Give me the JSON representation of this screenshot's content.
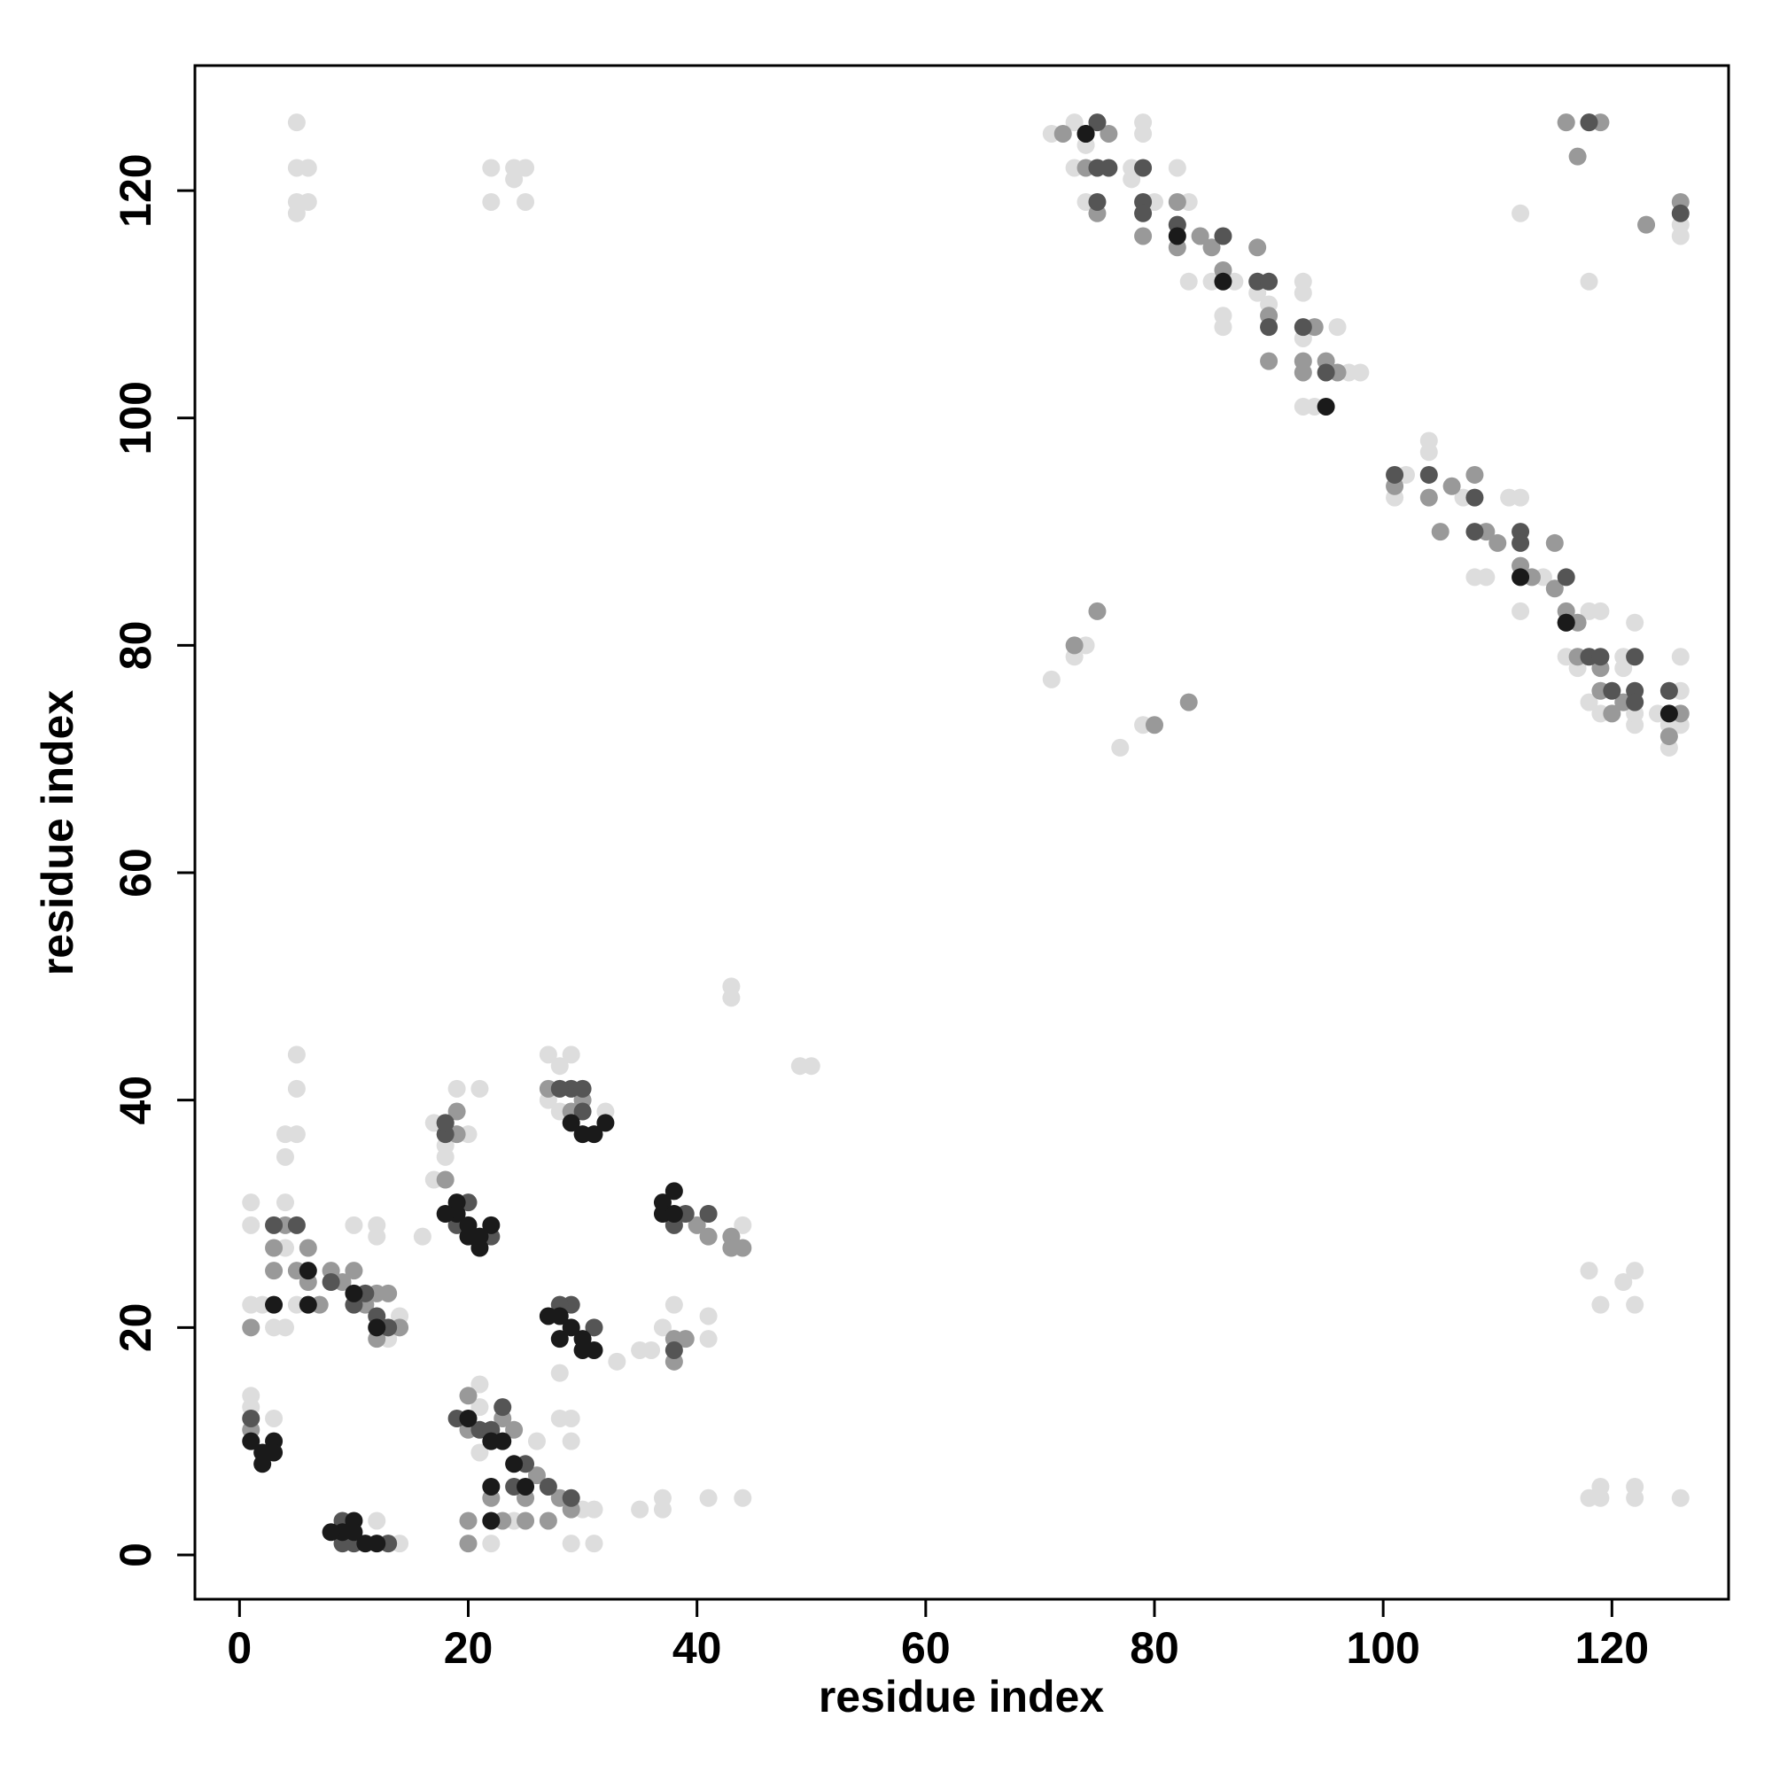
{
  "chart_data": {
    "type": "scatter",
    "xlabel": "residue index",
    "ylabel": "residue index",
    "xlim": [
      -3.9,
      130.2
    ],
    "ylim": [
      -3.9,
      131.0
    ],
    "xticks": [
      0,
      20,
      40,
      60,
      80,
      100,
      120
    ],
    "yticks": [
      0,
      20,
      40,
      60,
      80,
      100,
      120
    ],
    "series": [
      {
        "color": "#dddddd",
        "x": [
          1,
          1,
          1,
          1,
          1,
          2,
          3,
          3,
          4,
          4,
          4,
          4,
          4,
          5,
          5,
          5,
          5,
          5,
          5,
          5,
          5,
          6,
          6,
          12,
          12,
          10,
          14,
          13,
          12,
          14,
          13,
          16,
          17,
          17,
          18,
          18,
          19,
          21,
          20,
          22,
          22,
          24,
          24,
          25,
          25,
          21,
          21,
          22,
          21,
          24,
          26,
          27,
          27,
          28,
          29,
          28,
          28,
          28,
          29,
          29,
          29,
          30,
          31,
          31,
          33,
          32,
          35,
          35,
          36,
          37,
          37,
          37,
          38,
          38,
          41,
          41,
          41,
          44,
          44,
          43,
          43,
          49,
          50,
          71,
          71,
          73,
          74,
          73,
          73,
          74,
          74,
          77,
          79,
          78,
          78,
          79,
          79,
          80,
          82,
          83,
          83,
          84,
          85,
          86,
          86,
          87,
          89,
          90,
          93,
          93,
          93,
          93,
          94,
          96,
          97,
          98,
          101,
          102,
          104,
          104,
          107,
          108,
          109,
          111,
          112,
          112,
          112,
          114,
          116,
          117,
          118,
          118,
          118,
          118,
          118,
          119,
          119,
          119,
          119,
          119,
          121,
          121,
          121,
          122,
          122,
          122,
          122,
          122,
          122,
          122,
          124,
          125,
          125,
          126,
          126,
          126,
          126,
          126,
          126,
          116
        ],
        "y": [
          31,
          29,
          22,
          13,
          14,
          22,
          12,
          20,
          20,
          27,
          31,
          37,
          35,
          44,
          41,
          37,
          22,
          126,
          122,
          119,
          118,
          122,
          119,
          29,
          28,
          29,
          21,
          19,
          3,
          1,
          1,
          28,
          38,
          33,
          36,
          35,
          41,
          41,
          37,
          122,
          119,
          121,
          122,
          122,
          119,
          15,
          13,
          1,
          9,
          3,
          10,
          44,
          40,
          43,
          44,
          39,
          16,
          12,
          12,
          10,
          1,
          4,
          4,
          1,
          17,
          39,
          4,
          18,
          18,
          5,
          4,
          20,
          29,
          22,
          5,
          21,
          19,
          5,
          29,
          50,
          49,
          43,
          43,
          125,
          77,
          79,
          80,
          126,
          122,
          124,
          119,
          71,
          73,
          121,
          122,
          126,
          125,
          119,
          122,
          119,
          112,
          116,
          112,
          108,
          109,
          112,
          111,
          110,
          112,
          111,
          107,
          101,
          101,
          108,
          104,
          104,
          93,
          95,
          98,
          97,
          93,
          86,
          86,
          93,
          93,
          83,
          118,
          86,
          79,
          78,
          83,
          75,
          112,
          25,
          5,
          83,
          74,
          22,
          6,
          5,
          24,
          79,
          78,
          82,
          73,
          25,
          22,
          6,
          5,
          74,
          74,
          71,
          73,
          79,
          76,
          73,
          117,
          116,
          5,
          126
        ]
      },
      {
        "color": "#999999",
        "x": [
          1,
          1,
          3,
          3,
          4,
          5,
          6,
          6,
          7,
          8,
          9,
          10,
          11,
          12,
          12,
          13,
          14,
          18,
          19,
          18,
          19,
          27,
          29,
          30,
          27,
          28,
          29,
          22,
          23,
          25,
          25,
          20,
          20,
          20,
          20,
          23,
          24,
          26,
          38,
          39,
          41,
          41,
          43,
          44,
          43,
          40,
          38,
          73,
          75,
          80,
          83,
          72,
          74,
          75,
          76,
          79,
          82,
          82,
          84,
          85,
          86,
          89,
          90,
          90,
          93,
          93,
          94,
          95,
          96,
          101,
          104,
          105,
          106,
          108,
          109,
          110,
          112,
          113,
          115,
          115,
          116,
          117,
          117,
          119,
          119,
          120,
          121,
          123,
          125,
          126,
          117,
          116,
          118,
          119,
          126
        ],
        "y": [
          20,
          11,
          25,
          27,
          29,
          25,
          27,
          24,
          22,
          25,
          24,
          25,
          22,
          23,
          19,
          23,
          20,
          33,
          39,
          38,
          37,
          41,
          39,
          40,
          3,
          5,
          4,
          5,
          3,
          3,
          5,
          14,
          11,
          3,
          1,
          12,
          11,
          7,
          19,
          19,
          30,
          28,
          28,
          27,
          27,
          29,
          17,
          80,
          83,
          73,
          75,
          125,
          122,
          118,
          125,
          116,
          115,
          119,
          116,
          115,
          113,
          115,
          109,
          105,
          105,
          104,
          108,
          105,
          104,
          94,
          93,
          90,
          94,
          95,
          90,
          89,
          87,
          86,
          89,
          85,
          83,
          82,
          79,
          76,
          78,
          74,
          75,
          117,
          72,
          74,
          123,
          126,
          126,
          126,
          119
        ]
      },
      {
        "color": "#555555",
        "x": [
          1,
          5,
          3,
          10,
          11,
          12,
          13,
          8,
          20,
          19,
          22,
          29,
          28,
          31,
          29,
          30,
          28,
          30,
          39,
          38,
          41,
          38,
          21,
          22,
          24,
          23,
          25,
          29,
          9,
          10,
          13,
          75,
          76,
          75,
          79,
          79,
          79,
          82,
          86,
          89,
          90,
          90,
          93,
          95,
          101,
          104,
          108,
          108,
          112,
          112,
          116,
          116,
          118,
          119,
          120,
          122,
          122,
          122,
          125,
          126,
          118,
          75,
          74,
          27,
          19,
          9,
          18,
          18
        ],
        "y": [
          12,
          29,
          29,
          22,
          23,
          21,
          20,
          24,
          31,
          29,
          28,
          22,
          22,
          20,
          41,
          41,
          41,
          39,
          30,
          29,
          30,
          18,
          11,
          11,
          6,
          13,
          8,
          5,
          1,
          1,
          1,
          122,
          122,
          119,
          122,
          119,
          118,
          117,
          116,
          112,
          112,
          108,
          108,
          104,
          95,
          95,
          93,
          90,
          90,
          89,
          86,
          82,
          79,
          79,
          76,
          79,
          76,
          75,
          76,
          118,
          126,
          126,
          125,
          6,
          12,
          3,
          37,
          38
        ]
      },
      {
        "color": "#1a1a1a",
        "x": [
          1,
          2,
          2,
          3,
          3,
          9,
          10,
          10,
          8,
          19,
          19,
          20,
          20,
          21,
          21,
          22,
          18,
          28,
          29,
          28,
          30,
          30,
          27,
          31,
          29,
          30,
          31,
          32,
          37,
          37,
          38,
          38,
          20,
          22,
          23,
          22,
          25,
          24,
          22,
          3,
          11,
          12,
          12,
          10,
          86,
          82,
          74,
          95,
          112,
          116,
          125,
          6,
          6
        ],
        "y": [
          10,
          9,
          8,
          10,
          9,
          2,
          3,
          2,
          2,
          31,
          30,
          29,
          28,
          28,
          27,
          29,
          30,
          21,
          20,
          19,
          19,
          18,
          21,
          18,
          38,
          37,
          37,
          38,
          31,
          30,
          32,
          30,
          12,
          10,
          10,
          6,
          6,
          8,
          3,
          22,
          1,
          1,
          20,
          23,
          112,
          116,
          125,
          101,
          86,
          82,
          74,
          22,
          25
        ]
      }
    ]
  }
}
